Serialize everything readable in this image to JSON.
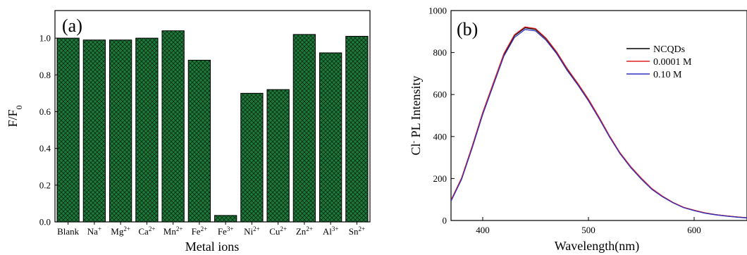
{
  "chart_data": [
    {
      "type": "bar",
      "panel_label": "(a)",
      "categories": [
        {
          "base": "Blank",
          "sup": ""
        },
        {
          "base": "Na",
          "sup": "+"
        },
        {
          "base": "Mg",
          "sup": "2+"
        },
        {
          "base": "Ca",
          "sup": "2+"
        },
        {
          "base": "Mn",
          "sup": "2+"
        },
        {
          "base": "Fe",
          "sup": "2+"
        },
        {
          "base": "Fe",
          "sup": "3+"
        },
        {
          "base": "Ni",
          "sup": "2+"
        },
        {
          "base": "Cu",
          "sup": "2+"
        },
        {
          "base": "Zn",
          "sup": "2+"
        },
        {
          "base": "Al",
          "sup": "3+"
        },
        {
          "base": "Sn",
          "sup": "2+"
        }
      ],
      "values": [
        1.0,
        0.99,
        0.99,
        1.0,
        1.04,
        0.88,
        0.035,
        0.7,
        0.72,
        1.02,
        0.92,
        1.01
      ],
      "xlabel": "Metal ions",
      "ylabel": {
        "base": "F/F",
        "sub": "0"
      },
      "ylim": [
        0,
        1.15
      ],
      "yticks": [
        "0.0",
        "0.2",
        "0.4",
        "0.6",
        "0.8",
        "1.0"
      ],
      "bar_color": "#1e7a3a",
      "hatch": "crosshatch"
    },
    {
      "type": "line",
      "panel_label": "(b)",
      "xlabel": "Wavelength(nm)",
      "ylabel": {
        "base": "Cl",
        "sup": "-",
        "rest": " PL Intensity"
      },
      "xlim": [
        370,
        650
      ],
      "ylim": [
        0,
        1000
      ],
      "xticks": [
        "400",
        "500",
        "600"
      ],
      "yticks": [
        "0",
        "200",
        "400",
        "600",
        "800",
        "1000"
      ],
      "x": [
        370,
        380,
        390,
        400,
        410,
        420,
        430,
        440,
        450,
        460,
        470,
        480,
        490,
        500,
        510,
        520,
        530,
        540,
        550,
        560,
        570,
        580,
        590,
        600,
        610,
        620,
        630,
        640,
        650
      ],
      "series": [
        {
          "name": "NCQDs",
          "color": "#000000",
          "values": [
            95,
            200,
            350,
            510,
            650,
            790,
            880,
            918,
            910,
            865,
            800,
            720,
            650,
            575,
            490,
            400,
            320,
            255,
            200,
            150,
            115,
            85,
            62,
            48,
            36,
            28,
            22,
            17,
            13
          ]
        },
        {
          "name": "0.0001 M",
          "color": "#e02020",
          "values": [
            97,
            203,
            354,
            515,
            655,
            795,
            885,
            922,
            914,
            868,
            803,
            723,
            653,
            578,
            493,
            403,
            322,
            257,
            202,
            152,
            116,
            86,
            63,
            49,
            37,
            28,
            22,
            17,
            13
          ]
        },
        {
          "name": "0.10 M",
          "color": "#3030c0",
          "values": [
            92,
            196,
            345,
            505,
            644,
            783,
            872,
            910,
            903,
            858,
            794,
            714,
            645,
            570,
            486,
            397,
            317,
            252,
            197,
            148,
            113,
            84,
            61,
            47,
            35,
            27,
            21,
            16,
            12
          ]
        }
      ]
    }
  ]
}
